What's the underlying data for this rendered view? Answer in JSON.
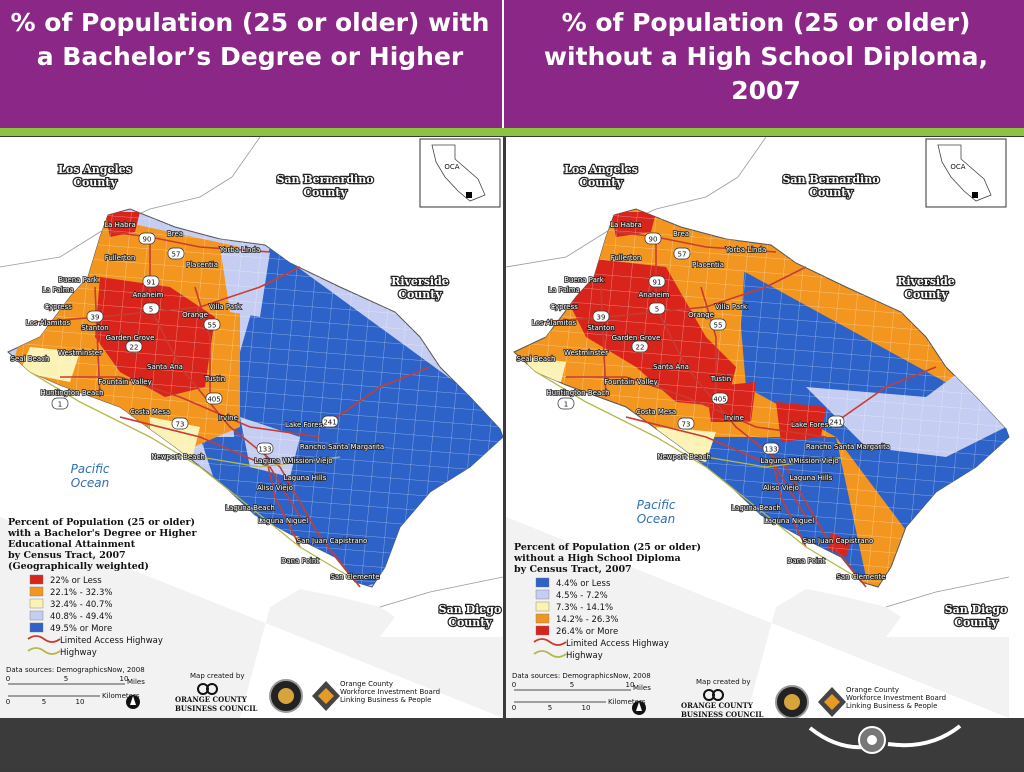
{
  "titles": {
    "left": "% of Population (25 or older) with a Bachelor’s Degree or Higher",
    "right": "% of Population (25 or older) without a High School Diploma, 2007"
  },
  "colors": {
    "title_bar": "#8b2787",
    "accent_rule": "#8bc43f",
    "class_1": "#d9241c",
    "class_2": "#f2961f",
    "class_3": "#fbf2b6",
    "class_4": "#c5cdf2",
    "class_5": "#2d63c8",
    "highway_limited": "#c83c32",
    "highway": "#b5b84a"
  },
  "maps": {
    "common": {
      "county_labels": {
        "la": [
          "Los Angeles",
          "County"
        ],
        "sb": [
          "San Bernardino",
          "County"
        ],
        "riv": [
          "Riverside",
          "County"
        ],
        "sd": [
          "San Diego",
          "County"
        ]
      },
      "ocean": [
        "Pacific",
        "Ocean"
      ],
      "data_source": "Data sources: DemographicsNow, 2008",
      "scale": {
        "miles_label": "Miles",
        "km_label": "Kilometers",
        "miles_ticks": [
          "0",
          "5",
          "10"
        ],
        "km_ticks": [
          "0",
          "5",
          "10"
        ]
      },
      "map_created_by": "Map created by",
      "orgs": {
        "occ": [
          "ORANGE COUNTY",
          "BUSINESS COUNCIL"
        ],
        "wib": [
          "Orange County",
          "Workforce Investment Board",
          "Linking Business & People"
        ]
      },
      "inset_label": "OCA",
      "cities": [
        "La Habra",
        "Brea",
        "Fullerton",
        "Yorba Linda",
        "Placentia",
        "Buena Park",
        "La Palma",
        "Anaheim",
        "Cypress",
        "Los Alamitos",
        "Stanton",
        "Garden Grove",
        "Orange",
        "Villa Park",
        "Seal Beach",
        "Westminster",
        "Santa Ana",
        "Fountain Valley",
        "Tustin",
        "Huntington Beach",
        "Costa Mesa",
        "Irvine",
        "Lake Forest",
        "Rancho Santa Margarita",
        "Newport Beach",
        "Laguna Woods",
        "Mission Viejo",
        "Laguna Hills",
        "Aliso Viejo",
        "Laguna Beach",
        "Laguna Niguel",
        "San Juan Capistrano",
        "Dana Point",
        "San Clemente"
      ],
      "route_shields": [
        "90",
        "57",
        "91",
        "5",
        "55",
        "22",
        "39",
        "405",
        "1",
        "73",
        "241",
        "133"
      ]
    },
    "left": {
      "legend_title": [
        "Percent of Population (25 or older)",
        "with a Bachelor's Degree or Higher",
        "Educational Attainment",
        "by Census Tract, 2007",
        "(Geographically weighted)"
      ],
      "legend_items": [
        "22% or Less",
        "22.1% - 32.3%",
        "32.4% - 40.7%",
        "40.8% - 49.4%",
        "49.5% or More"
      ],
      "legend_colors": [
        "#d9241c",
        "#f2961f",
        "#fbf2b6",
        "#c5cdf2",
        "#2d63c8"
      ],
      "highway_items": [
        "Limited Access Highway",
        "Highway"
      ]
    },
    "right": {
      "legend_title": [
        "Percent of Population (25 or older)",
        "without a High School Diploma",
        "by Census Tract, 2007"
      ],
      "legend_items": [
        "4.4% or Less",
        "4.5% - 7.2%",
        "7.3% - 14.1%",
        "14.2% - 26.3%",
        "26.4% or More"
      ],
      "legend_colors": [
        "#2d63c8",
        "#c5cdf2",
        "#fbf2b6",
        "#f2961f",
        "#d9241c"
      ],
      "highway_items": [
        "Limited Access Highway",
        "Highway"
      ]
    }
  }
}
